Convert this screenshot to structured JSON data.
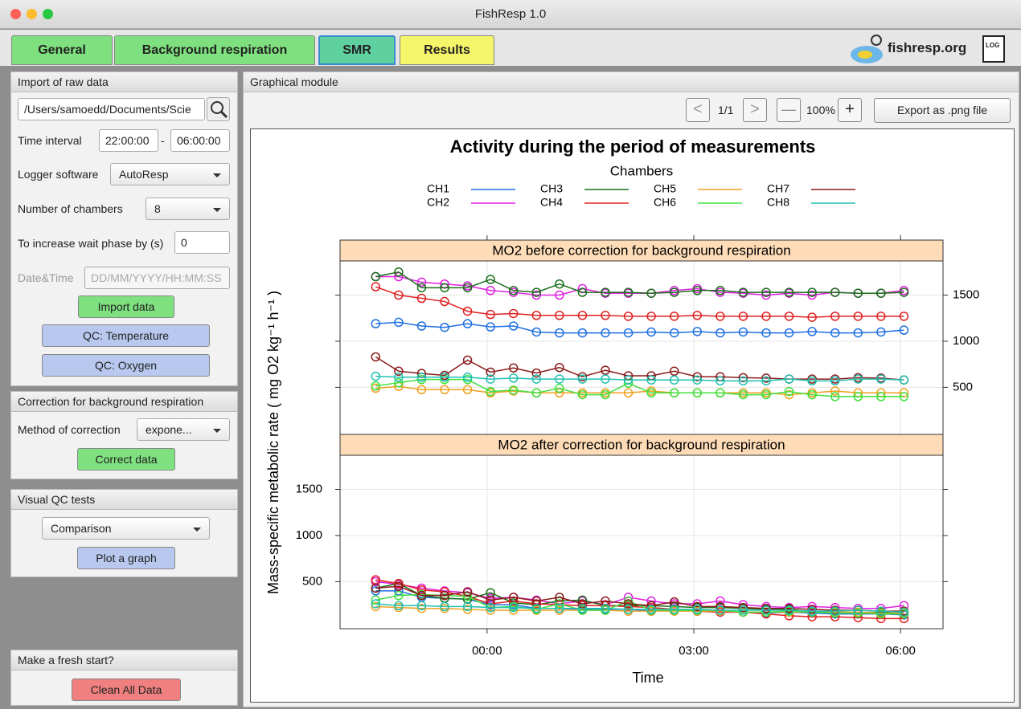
{
  "window": {
    "title": "FishResp 1.0"
  },
  "tabs": [
    "General",
    "Background respiration",
    "SMR",
    "Results"
  ],
  "header": {
    "site": "fishresp.org",
    "log": "LOG"
  },
  "sidebar": {
    "import": {
      "title": "Import of raw data",
      "path": "/Users/samoedd/Documents/Scie",
      "time_label": "Time interval",
      "time_start": "22:00:00",
      "time_sep": "-",
      "time_end": "06:00:00",
      "logger_label": "Logger software",
      "logger": "AutoResp",
      "chambers_label": "Number of chambers",
      "chambers": "8",
      "wait_label": "To increase wait phase by (s)",
      "wait": "0",
      "datetime_label": "Date&Time",
      "datetime_placeholder": "DD/MM/YYYY/HH:MM:SS",
      "import_button": "Import data",
      "qc_temp_button": "QC: Temperature",
      "qc_oxygen_button": "QC: Oxygen"
    },
    "correction": {
      "title": "Correction for background respiration",
      "method_label": "Method of correction",
      "method": "expone...",
      "button": "Correct data"
    },
    "visual_qc": {
      "title": "Visual QC tests",
      "test": "Comparison",
      "button": "Plot a graph"
    },
    "fresh_start": {
      "title": "Make a fresh start?",
      "button": "Clean All Data"
    }
  },
  "graph_module": {
    "title": "Graphical module",
    "prev": "<",
    "page": "1/1",
    "next": ">",
    "zoom_out": "—",
    "zoom": "100%",
    "zoom_in": "+",
    "export": "Export as .png file"
  },
  "plot": {
    "title": "Activity during the period of measurements",
    "legend_title": "Chambers",
    "xlabel": "Time",
    "ylabel": "Mass-specific metabolic rate ( mg O2 kg⁻¹ h⁻¹ )"
  },
  "chart_data": [
    {
      "type": "line",
      "title": "MO2 before correction for background respiration",
      "grid": true,
      "x": [
        "22:23",
        "22:43",
        "23:03",
        "23:23",
        "23:43",
        "00:03",
        "00:23",
        "00:43",
        "01:03",
        "01:23",
        "01:43",
        "02:03",
        "02:23",
        "02:43",
        "03:03",
        "03:23",
        "03:43",
        "04:03",
        "04:23",
        "04:43",
        "05:03",
        "05:23",
        "05:43",
        "06:03"
      ],
      "xlim": [
        "21:52",
        "06:37"
      ],
      "xticks": [
        "00:00",
        "03:00",
        "06:00"
      ],
      "ylim": [
        -10,
        1870
      ],
      "yticks": [
        500,
        1000,
        1500
      ],
      "series": [
        {
          "name": "CH1",
          "color": "#1f6fe0",
          "values": [
            1190,
            1205,
            1165,
            1150,
            1190,
            1155,
            1165,
            1100,
            1090,
            1090,
            1090,
            1090,
            1100,
            1090,
            1105,
            1090,
            1100,
            1090,
            1090,
            1105,
            1090,
            1090,
            1100,
            1120
          ]
        },
        {
          "name": "CH2",
          "color": "#e020e0",
          "values": [
            1700,
            1700,
            1640,
            1620,
            1600,
            1550,
            1530,
            1500,
            1500,
            1570,
            1520,
            1520,
            1520,
            1550,
            1570,
            1530,
            1520,
            1500,
            1520,
            1500,
            1530,
            1520,
            1520,
            1550
          ]
        },
        {
          "name": "CH3",
          "color": "#1a6e1a",
          "values": [
            1700,
            1750,
            1580,
            1580,
            1580,
            1670,
            1550,
            1530,
            1620,
            1530,
            1530,
            1530,
            1520,
            1530,
            1550,
            1550,
            1530,
            1530,
            1530,
            1530,
            1530,
            1520,
            1520,
            1530
          ]
        },
        {
          "name": "CH4",
          "color": "#e02020",
          "values": [
            1590,
            1500,
            1465,
            1430,
            1325,
            1290,
            1300,
            1280,
            1280,
            1280,
            1280,
            1270,
            1270,
            1270,
            1280,
            1270,
            1270,
            1270,
            1270,
            1260,
            1270,
            1270,
            1270,
            1270
          ]
        },
        {
          "name": "CH5",
          "color": "#f0a020",
          "values": [
            490,
            510,
            475,
            475,
            475,
            440,
            460,
            440,
            440,
            440,
            440,
            440,
            460,
            440,
            440,
            440,
            440,
            440,
            420,
            440,
            460,
            440,
            440,
            440
          ]
        },
        {
          "name": "CH6",
          "color": "#40e040",
          "values": [
            515,
            550,
            585,
            585,
            585,
            455,
            470,
            440,
            490,
            420,
            420,
            545,
            440,
            440,
            440,
            440,
            420,
            420,
            455,
            420,
            400,
            400,
            400,
            400
          ]
        },
        {
          "name": "CH7",
          "color": "#8b1a1a",
          "values": [
            830,
            675,
            650,
            630,
            795,
            665,
            710,
            655,
            715,
            615,
            685,
            625,
            625,
            675,
            615,
            615,
            605,
            600,
            590,
            590,
            590,
            605,
            600,
            580
          ]
        },
        {
          "name": "CH8",
          "color": "#20c0b0",
          "values": [
            620,
            610,
            610,
            610,
            610,
            590,
            600,
            590,
            590,
            590,
            590,
            580,
            580,
            580,
            580,
            570,
            570,
            570,
            590,
            570,
            570,
            590,
            590,
            580
          ]
        }
      ]
    },
    {
      "type": "line",
      "title": "MO2 after correction for background respiration",
      "grid": true,
      "x": [
        "22:23",
        "22:43",
        "23:03",
        "23:23",
        "23:43",
        "00:03",
        "00:23",
        "00:43",
        "01:03",
        "01:23",
        "01:43",
        "02:03",
        "02:23",
        "02:43",
        "03:03",
        "03:23",
        "03:43",
        "04:03",
        "04:23",
        "04:43",
        "05:03",
        "05:23",
        "05:43",
        "06:03"
      ],
      "xlim": [
        "21:52",
        "06:37"
      ],
      "xticks": [
        "00:00",
        "03:00",
        "06:00"
      ],
      "ylim": [
        -10,
        1870
      ],
      "yticks": [
        500,
        1000,
        1500
      ],
      "series": [
        {
          "color": "#1f6fe0",
          "values": [
            400,
            400,
            330,
            320,
            310,
            250,
            250,
            210,
            210,
            200,
            200,
            200,
            180,
            190,
            180,
            170,
            170,
            160,
            170,
            160,
            150,
            150,
            150,
            140
          ]
        },
        {
          "color": "#e020e0",
          "values": [
            500,
            470,
            430,
            400,
            380,
            320,
            330,
            300,
            260,
            290,
            250,
            330,
            290,
            260,
            260,
            290,
            250,
            230,
            220,
            230,
            220,
            210,
            210,
            240
          ]
        },
        {
          "color": "#1a6e1a",
          "values": [
            430,
            480,
            350,
            320,
            310,
            380,
            270,
            250,
            290,
            300,
            240,
            240,
            240,
            230,
            220,
            220,
            210,
            200,
            200,
            170,
            170,
            160,
            170,
            160
          ]
        },
        {
          "color": "#e02020",
          "values": [
            520,
            480,
            410,
            390,
            340,
            260,
            290,
            260,
            250,
            240,
            240,
            230,
            220,
            200,
            180,
            170,
            170,
            150,
            130,
            120,
            120,
            110,
            100,
            100
          ]
        },
        {
          "color": "#f0a020",
          "values": [
            230,
            220,
            210,
            210,
            200,
            190,
            190,
            190,
            190,
            190,
            190,
            180,
            180,
            180,
            180,
            180,
            170,
            170,
            170,
            170,
            170,
            170,
            160,
            160
          ]
        },
        {
          "color": "#40e040",
          "values": [
            300,
            350,
            360,
            350,
            340,
            220,
            230,
            200,
            260,
            190,
            190,
            290,
            190,
            190,
            190,
            190,
            170,
            170,
            180,
            170,
            160,
            160,
            150,
            150
          ]
        },
        {
          "color": "#8b1a1a",
          "values": [
            430,
            450,
            350,
            350,
            390,
            300,
            330,
            290,
            330,
            260,
            290,
            260,
            240,
            280,
            230,
            230,
            220,
            210,
            210,
            200,
            190,
            190,
            180,
            180
          ]
        },
        {
          "color": "#20c0b0",
          "values": [
            260,
            240,
            240,
            230,
            230,
            220,
            220,
            210,
            210,
            210,
            210,
            200,
            200,
            200,
            200,
            190,
            190,
            190,
            190,
            180,
            180,
            190,
            180,
            170
          ]
        }
      ]
    }
  ]
}
